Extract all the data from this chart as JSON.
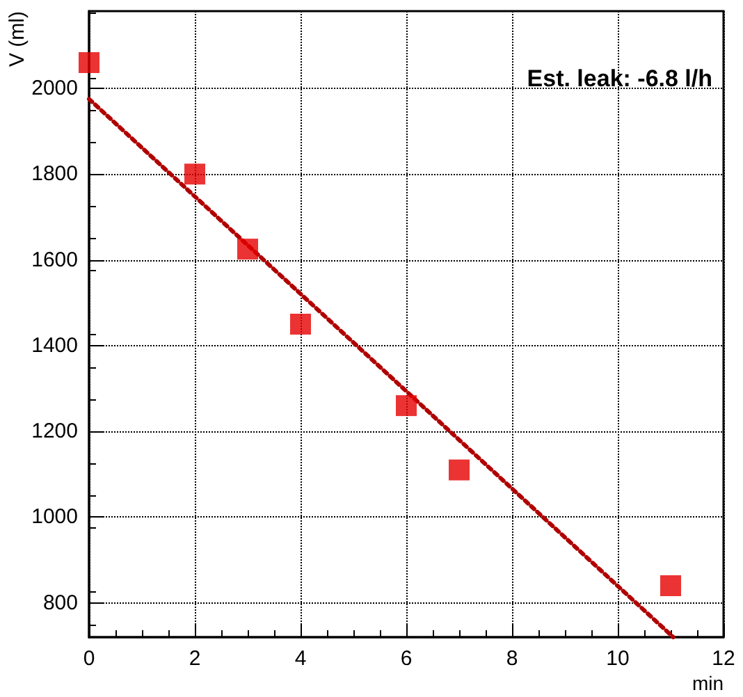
{
  "chart_data": {
    "type": "scatter",
    "xlabel": "min",
    "ylabel": "V (ml)",
    "annotations": [
      "Est. leak: -6.8 l/h"
    ],
    "xlim": [
      0,
      12
    ],
    "xticks": [
      0,
      2,
      4,
      6,
      8,
      10,
      12
    ],
    "ylim": [
      720,
      2180
    ],
    "yticks": [
      800,
      1000,
      1200,
      1400,
      1600,
      1800,
      2000
    ],
    "grid": true,
    "series": [
      {
        "color": "#e60000",
        "marker": "square",
        "x": [
          0,
          2,
          3,
          4,
          6,
          7,
          11
        ],
        "values": [
          2060,
          1800,
          1625,
          1450,
          1260,
          1110,
          840
        ]
      },
      {
        "type": "line",
        "color": "#b00000",
        "line_style": "dotted",
        "marker": "none",
        "x": [
          0,
          11.05
        ],
        "values": [
          1975,
          720
        ]
      }
    ]
  }
}
